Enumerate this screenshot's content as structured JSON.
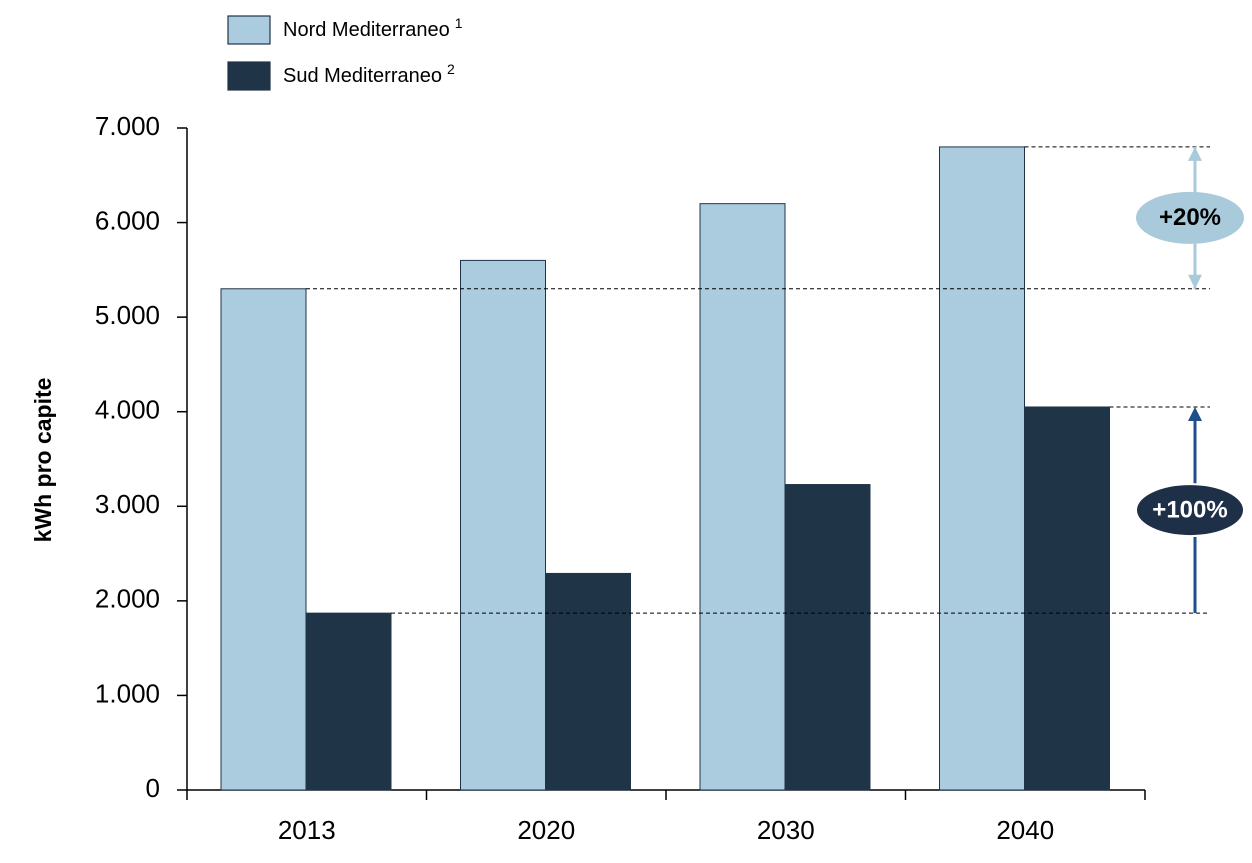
{
  "chart_data": {
    "type": "bar",
    "y_label": "kWh pro capite",
    "categories": [
      "2013",
      "2020",
      "2030",
      "2040"
    ],
    "series": [
      {
        "name": "Nord Mediterraneo",
        "footnote": "1",
        "color": "#abcbde",
        "values": [
          5300,
          5600,
          6200,
          6800
        ]
      },
      {
        "name": "Sud Mediterraneo",
        "footnote": "2",
        "color": "#203448",
        "values": [
          1870,
          2290,
          3230,
          4050
        ]
      }
    ],
    "ylim": [
      0,
      7000
    ],
    "yticks": [
      0,
      {
        "value": 1000,
        "label": "1.000"
      },
      {
        "value": 2000,
        "label": "2.000"
      },
      {
        "value": 3000,
        "label": "3.000"
      },
      {
        "value": 4000,
        "label": "4.000"
      },
      {
        "value": 5000,
        "label": "5.000"
      },
      {
        "value": 6000,
        "label": "6.000"
      },
      {
        "value": 7000,
        "label": "7.000"
      }
    ],
    "annotations": [
      {
        "text": "+20%",
        "series": 0,
        "color": "#a9cadb",
        "text_color": "#000000"
      },
      {
        "text": "+100%",
        "series": 1,
        "color": "#1d3047",
        "arrow_color": "#1f4e8c",
        "text_color": "#ffffff"
      }
    ]
  }
}
